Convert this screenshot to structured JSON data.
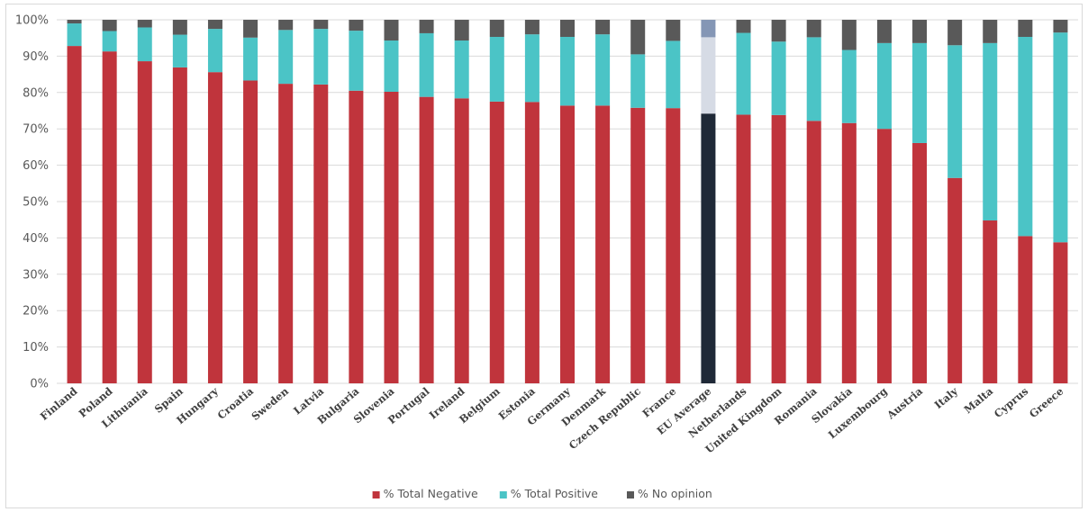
{
  "chart_data": {
    "type": "bar",
    "stacked": true,
    "percent": true,
    "categories": [
      "Finland",
      "Poland",
      "Lithuania",
      "Spain",
      "Hungary",
      "Croatia",
      "Sweden",
      "Latvia",
      "Bulgaria",
      "Slovenia",
      "Portugal",
      "Ireland",
      "Belgium",
      "Estonia",
      "Germany",
      "Denmark",
      "Czech Republic",
      "France",
      "EU Average",
      "Netherlands",
      "United Kingdom",
      "Romania",
      "Slovakia",
      "Luxembourg",
      "Austria",
      "Italy",
      "Malta",
      "Cyprus",
      "Greece"
    ],
    "series": [
      {
        "name": "% Total Negative",
        "color": "#c0343c",
        "values": [
          92.8,
          91.3,
          88.6,
          86.9,
          85.6,
          83.3,
          82.4,
          82.2,
          80.5,
          80.2,
          78.8,
          78.4,
          77.5,
          77.4,
          76.4,
          76.4,
          75.8,
          75.7,
          74.2,
          73.9,
          73.8,
          72.2,
          71.6,
          70.0,
          66.1,
          56.5,
          44.8,
          40.5,
          38.8
        ]
      },
      {
        "name": "% Total Positive",
        "color": "#4bc4c6",
        "values": [
          6.2,
          5.6,
          9.3,
          9.0,
          11.9,
          11.8,
          14.8,
          15.3,
          16.5,
          14.1,
          17.5,
          15.9,
          17.8,
          18.6,
          18.9,
          19.6,
          14.7,
          18.5,
          21.0,
          22.5,
          20.2,
          23.0,
          20.1,
          23.6,
          27.5,
          36.5,
          48.8,
          54.8,
          57.7
        ]
      },
      {
        "name": "% No opinion",
        "color": "#595959",
        "values": [
          1.0,
          3.1,
          2.1,
          4.1,
          2.5,
          4.9,
          2.8,
          2.5,
          3.0,
          5.7,
          3.7,
          5.7,
          4.7,
          4.0,
          4.7,
          4.0,
          9.5,
          5.8,
          4.8,
          3.6,
          6.0,
          4.8,
          8.3,
          6.4,
          6.4,
          7.0,
          6.4,
          4.7,
          3.5
        ]
      }
    ],
    "highlight": {
      "category": "EU Average",
      "colors": [
        "#1f2937",
        "#d6dbe5",
        "#8496b5"
      ]
    },
    "ylim": [
      0,
      100
    ],
    "yticks": [
      "0%",
      "10%",
      "20%",
      "30%",
      "40%",
      "50%",
      "60%",
      "70%",
      "80%",
      "90%",
      "100%"
    ],
    "grid": true,
    "legend_position": "bottom"
  }
}
